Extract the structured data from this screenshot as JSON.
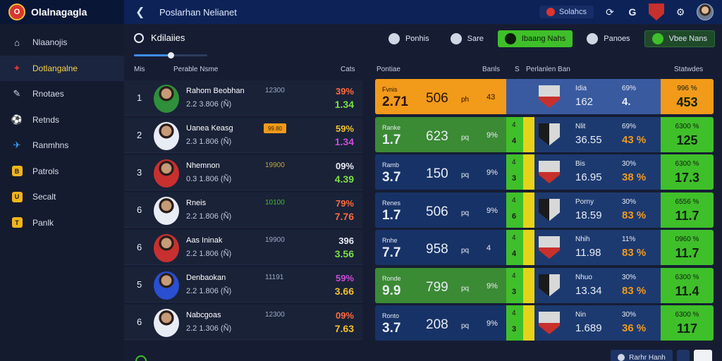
{
  "app": {
    "name": "Olalnagagla",
    "logo_letter": "O"
  },
  "topbar": {
    "title": "Poslarhan Nelianet",
    "status_label": "Solahcs",
    "icons": [
      "back-arrow-icon",
      "status-dot-icon",
      "refresh-icon",
      "g-icon",
      "club-badge-icon",
      "settings-icon",
      "user-avatar"
    ]
  },
  "sidebar": {
    "items": [
      {
        "label": "Nlaanojis",
        "icon": "home-icon",
        "glyph": "⌂",
        "active": false
      },
      {
        "label": "Dotlangalne",
        "icon": "dashboard-icon",
        "glyph": "✦",
        "active": true
      },
      {
        "label": "Rnotaes",
        "icon": "pen-icon",
        "glyph": "✎",
        "prefix": "Al",
        "active": false
      },
      {
        "label": "Retnds",
        "icon": "football-icon",
        "glyph": "⚽",
        "active": false
      },
      {
        "label": "Ranmhns",
        "icon": "twitter-icon",
        "glyph": "✈",
        "active": false
      },
      {
        "label": "Patrols",
        "icon": "badge-icon",
        "glyph": "B",
        "active": false
      },
      {
        "label": "Secalt",
        "icon": "shield-icon",
        "glyph": "U",
        "active": false
      },
      {
        "label": "Panlk",
        "icon": "trophy-icon",
        "glyph": "T",
        "active": false
      }
    ]
  },
  "main": {
    "subtitle": "Kdilaiies",
    "slider_value_pct": 50,
    "filters": [
      {
        "label": "Ponhis",
        "style": "plain"
      },
      {
        "label": "Sare",
        "style": "plain"
      },
      {
        "label": "Ibaang  Nahs",
        "style": "green"
      },
      {
        "label": "Panoes",
        "style": "plain"
      },
      {
        "label": "Vbee Nans",
        "style": "dark-green"
      }
    ],
    "headers": {
      "rank": "Mis",
      "name": "Perable Nsme",
      "stats": "Cats",
      "position": "Pontiae",
      "bans": "Banls",
      "s": "S",
      "rec_ban": "Perlanlen Ban",
      "standings": "Statwdes"
    }
  },
  "players": [
    {
      "rank": "1",
      "name": "Rahom Beobhan",
      "detail": "2.2 3.806 (Ñ)",
      "code": "12300",
      "code_color": "#9aa8c2",
      "pct": "39%",
      "pct_color": "#ff6a3d",
      "val": "1.34",
      "val_color": "#7be046",
      "kit": "#2f8f3a"
    },
    {
      "rank": "2",
      "name": "Uanea Keasg",
      "detail": "2.3 1.806 (Ñ)",
      "code": "99.80",
      "code_color": "#3a1d00",
      "chip": true,
      "pct": "59%",
      "pct_color": "#f2c12e",
      "val": "1.34",
      "val_color": "#c94dd6",
      "kit": "#e8ecf5"
    },
    {
      "rank": "3",
      "name": "Nhemnon",
      "detail": "0.3 1.806 (Ñ)",
      "code": "19900",
      "code_color": "#c2a23a",
      "pct": "09%",
      "pct_color": "#e8ecf5",
      "val": "4.39",
      "val_color": "#7be046",
      "kit": "#c83030"
    },
    {
      "rank": "6",
      "name": "Rneis",
      "detail": "2.2 1.806 (Ñ)",
      "code": "10100",
      "code_color": "#3fbf2a",
      "pct": "79%",
      "pct_color": "#ff6a3d",
      "val": "7.76",
      "val_color": "#ff6a3d",
      "kit": "#e8ecf5"
    },
    {
      "rank": "6",
      "name": "Aas Ininak",
      "detail": "2.2 1.806 (Ñ)",
      "code": "19900",
      "code_color": "#9aa8c2",
      "pct": "396",
      "pct_color": "#e8ecf5",
      "val": "3.56",
      "val_color": "#7be046",
      "kit": "#c83030"
    },
    {
      "rank": "5",
      "name": "Denbaokan",
      "detail": "2.2 1.806 (Ñ)",
      "code": "11191",
      "code_color": "#9aa8c2",
      "pct": "59%",
      "pct_color": "#c94dd6",
      "val": "3.66",
      "val_color": "#f2c12e",
      "kit": "#2a4fd0"
    },
    {
      "rank": "6",
      "name": "Nabcgoas",
      "detail": "2.2 1.306 (Ñ)",
      "code": "12300",
      "code_color": "#9aa8c2",
      "pct": "09%",
      "pct_color": "#ff6a3d",
      "val": "7.63",
      "val_color": "#f2c12e",
      "kit": "#e8ecf5"
    }
  ],
  "cards": [
    {
      "label": "Fvnis",
      "big": "2.71",
      "mid": "506",
      "small": "ph",
      "pct": "43",
      "strip_t1": "",
      "strip_t2": "",
      "team": "Idia",
      "stat": "162",
      "p1": "69%",
      "p2": "4.",
      "p1b": "%",
      "right_label": "996 %",
      "right_big": "453",
      "theme": "orange"
    },
    {
      "label": "Ranke",
      "big": "1.7",
      "mid": "623",
      "small": "pq",
      "pct": "9%",
      "strip_t1": "4",
      "strip_t2": "4",
      "team": "Nlit",
      "stat": "36.55",
      "p1": "69%",
      "p2": "43 %",
      "right_label": "6300 %",
      "right_big": "125",
      "theme": "green"
    },
    {
      "label": "Ramb",
      "big": "3.7",
      "mid": "150",
      "small": "pq",
      "pct": "9%",
      "strip_t1": "4",
      "strip_t2": "3",
      "team": "Bis",
      "stat": "16.95",
      "p1": "30%",
      "p2": "38 %",
      "right_label": "6300 %",
      "right_big": "17.3",
      "theme": "navy"
    },
    {
      "label": "Renes",
      "big": "1.7",
      "mid": "506",
      "small": "pq",
      "pct": "9%",
      "strip_t1": "4",
      "strip_t2": "6",
      "team": "Porny",
      "stat": "18.59",
      "p1": "30%",
      "p2": "83 %",
      "right_label": "6556 %",
      "right_big": "11.7",
      "theme": "navy"
    },
    {
      "label": "Rnhe",
      "big": "7.7",
      "mid": "958",
      "small": "pq",
      "pct": "4",
      "strip_t1": "4",
      "strip_t2": "4",
      "team": "Nhih",
      "stat": "11.98",
      "p1": "11%",
      "p2": "83 %",
      "right_label": "0960 %",
      "right_big": "11.7",
      "theme": "navy"
    },
    {
      "label": "Ronde",
      "big": "9.9",
      "mid": "799",
      "small": "pq",
      "pct": "9%",
      "strip_t1": "4",
      "strip_t2": "3",
      "team": "Nhuo",
      "stat": "13.34",
      "p1": "30%",
      "p2": "83 %",
      "right_label": "6300 %",
      "right_big": "11.4",
      "theme": "green"
    },
    {
      "label": "Ronto",
      "big": "3.7",
      "mid": "208",
      "small": "pq",
      "pct": "9%",
      "strip_t1": "4",
      "strip_t2": "3",
      "team": "Nin",
      "stat": "1.689",
      "p1": "30%",
      "p2": "36 %",
      "right_label": "6300 %",
      "right_big": "117",
      "theme": "navy"
    }
  ],
  "bottom": {
    "button1": "Rarhr Hanh"
  },
  "colors": {
    "orange": "#f29a1a",
    "green": "#3b8a34",
    "navy": "#173266",
    "accent_green": "#3fbf2a",
    "blue_panel": "#3a5aa0",
    "yellow": "#e7d21a"
  }
}
